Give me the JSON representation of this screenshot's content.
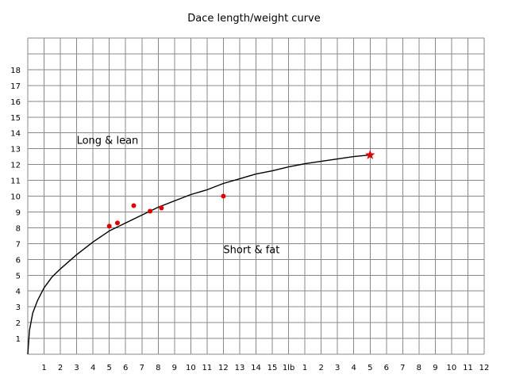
{
  "chart_data": {
    "type": "scatter",
    "title": "Dace length/weight curve",
    "xlabel": "",
    "ylabel": "",
    "x_tick_labels": [
      "1",
      "2",
      "3",
      "4",
      "5",
      "6",
      "7",
      "8",
      "9",
      "10",
      "11",
      "12",
      "13",
      "14",
      "15",
      "1lb",
      "1",
      "2",
      "3",
      "4",
      "5",
      "6",
      "7",
      "8",
      "9",
      "10",
      "11",
      "12"
    ],
    "y_tick_labels": [
      "1",
      "2",
      "3",
      "4",
      "5",
      "6",
      "7",
      "8",
      "9",
      "10",
      "11",
      "12",
      "13",
      "14",
      "15",
      "16",
      "17",
      "18"
    ],
    "xlim": [
      0,
      28
    ],
    "ylim": [
      0,
      20
    ],
    "grid": true,
    "curve": {
      "x": [
        0,
        0.1,
        0.3,
        0.6,
        1,
        1.5,
        2,
        3,
        4,
        5,
        6,
        7,
        8,
        9,
        10,
        11,
        12,
        13,
        14,
        15,
        16,
        17,
        18,
        19,
        20,
        21
      ],
      "y": [
        0,
        1.5,
        2.6,
        3.4,
        4.2,
        4.9,
        5.4,
        6.3,
        7.1,
        7.8,
        8.3,
        8.8,
        9.3,
        9.7,
        10.1,
        10.4,
        10.8,
        11.1,
        11.4,
        11.6,
        11.85,
        12.05,
        12.2,
        12.35,
        12.5,
        12.6
      ]
    },
    "points": {
      "x": [
        5,
        5.5,
        6.5,
        7.5,
        8.2,
        12
      ],
      "y": [
        8.1,
        8.3,
        9.4,
        9.05,
        9.25,
        10
      ]
    },
    "highlight": {
      "x": 21,
      "y": 12.6,
      "marker": "star"
    },
    "annotations": [
      {
        "text": "Long & lean",
        "x": 3,
        "y": 13.3
      },
      {
        "text": "Short & fat",
        "x": 12,
        "y": 6.4
      }
    ],
    "colors": {
      "points": "#e00000",
      "curve": "#000000",
      "grid": "#888888"
    }
  }
}
